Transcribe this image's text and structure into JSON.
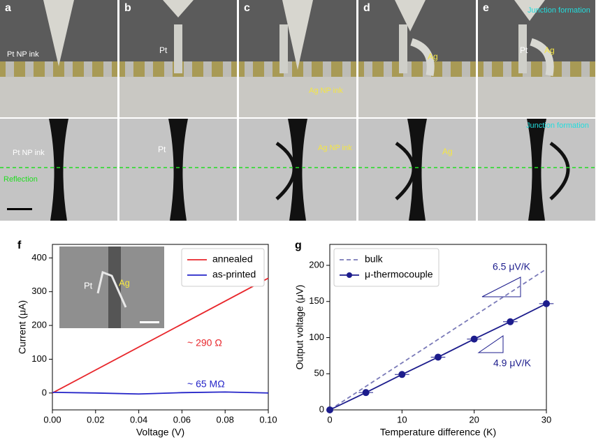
{
  "panels": [
    {
      "label": "a",
      "top_notes": [
        "Pt NP ink"
      ],
      "bottom_notes": [
        "Pt NP ink",
        "Reflection"
      ]
    },
    {
      "label": "b",
      "top_notes": [
        "Pt"
      ],
      "bottom_notes": [
        "Pt"
      ]
    },
    {
      "label": "c",
      "top_notes": [
        "Ag NP ink"
      ],
      "bottom_notes": [
        "Ag NP ink"
      ]
    },
    {
      "label": "d",
      "top_notes": [
        "Ag"
      ],
      "bottom_notes": [
        "Ag"
      ]
    },
    {
      "label": "e",
      "top_notes": [
        "Junction formation",
        "Pt",
        "Ag"
      ],
      "bottom_notes": [
        "Junction formation"
      ]
    }
  ],
  "chart_data": [
    {
      "type": "line",
      "panel_label": "f",
      "xlabel": "Voltage (V)",
      "ylabel": "Current (μA)",
      "xlim": [
        0,
        0.1
      ],
      "xticks": [
        {
          "value": 0,
          "label": "0.00"
        },
        {
          "value": 0.02,
          "label": "0.02"
        },
        {
          "value": 0.04,
          "label": "0.04"
        },
        {
          "value": 0.06,
          "label": "0.06"
        },
        {
          "value": 0.08,
          "label": "0.08"
        },
        {
          "value": 0.1,
          "label": "0.10"
        }
      ],
      "ylim": [
        -50,
        440
      ],
      "yticks": [
        0,
        100,
        200,
        300,
        400
      ],
      "legend": "upper right",
      "series": [
        {
          "name": "annealed",
          "color": "#e8262b",
          "x": [
            0,
            0.1
          ],
          "values": [
            0,
            340
          ]
        },
        {
          "name": "as-printed",
          "color": "#2424c8",
          "x": [
            0,
            0.02,
            0.04,
            0.06,
            0.08,
            0.1
          ],
          "values": [
            2,
            0,
            -3,
            1,
            3,
            0
          ]
        }
      ],
      "annotations": [
        {
          "text": "~ 290 Ω",
          "color": "#e8262b"
        },
        {
          "text": "~ 65 MΩ",
          "color": "#2424c8"
        }
      ],
      "inset_labels": [
        "Pt",
        "Ag"
      ]
    },
    {
      "type": "line",
      "panel_label": "g",
      "xlabel": "Temperature difference (K)",
      "ylabel": "Output voltage (μV)",
      "xlim": [
        0,
        30
      ],
      "xticks": [
        0,
        10,
        20,
        30
      ],
      "ylim": [
        0,
        229
      ],
      "yticks": [
        0,
        50,
        100,
        150,
        200
      ],
      "legend": "upper left",
      "series": [
        {
          "name": "bulk",
          "color": "#7a7ab8",
          "dash": true,
          "x": [
            0,
            30
          ],
          "values": [
            0,
            195
          ]
        },
        {
          "name": "μ-thermocouple",
          "color": "#1c1c8c",
          "marker": true,
          "x": [
            0,
            5,
            10,
            15,
            20,
            25,
            30
          ],
          "values": [
            0,
            24,
            49,
            73,
            98,
            122,
            147
          ],
          "yerr": [
            0,
            3,
            3,
            3,
            4,
            4,
            5
          ],
          "xerr": [
            0,
            1,
            1,
            1,
            1,
            1,
            1
          ]
        }
      ],
      "annotations": [
        {
          "text": "6.5 μV/K",
          "color": "#1c1c8c"
        },
        {
          "text": "4.9 μV/K",
          "color": "#1c1c8c"
        }
      ]
    }
  ]
}
